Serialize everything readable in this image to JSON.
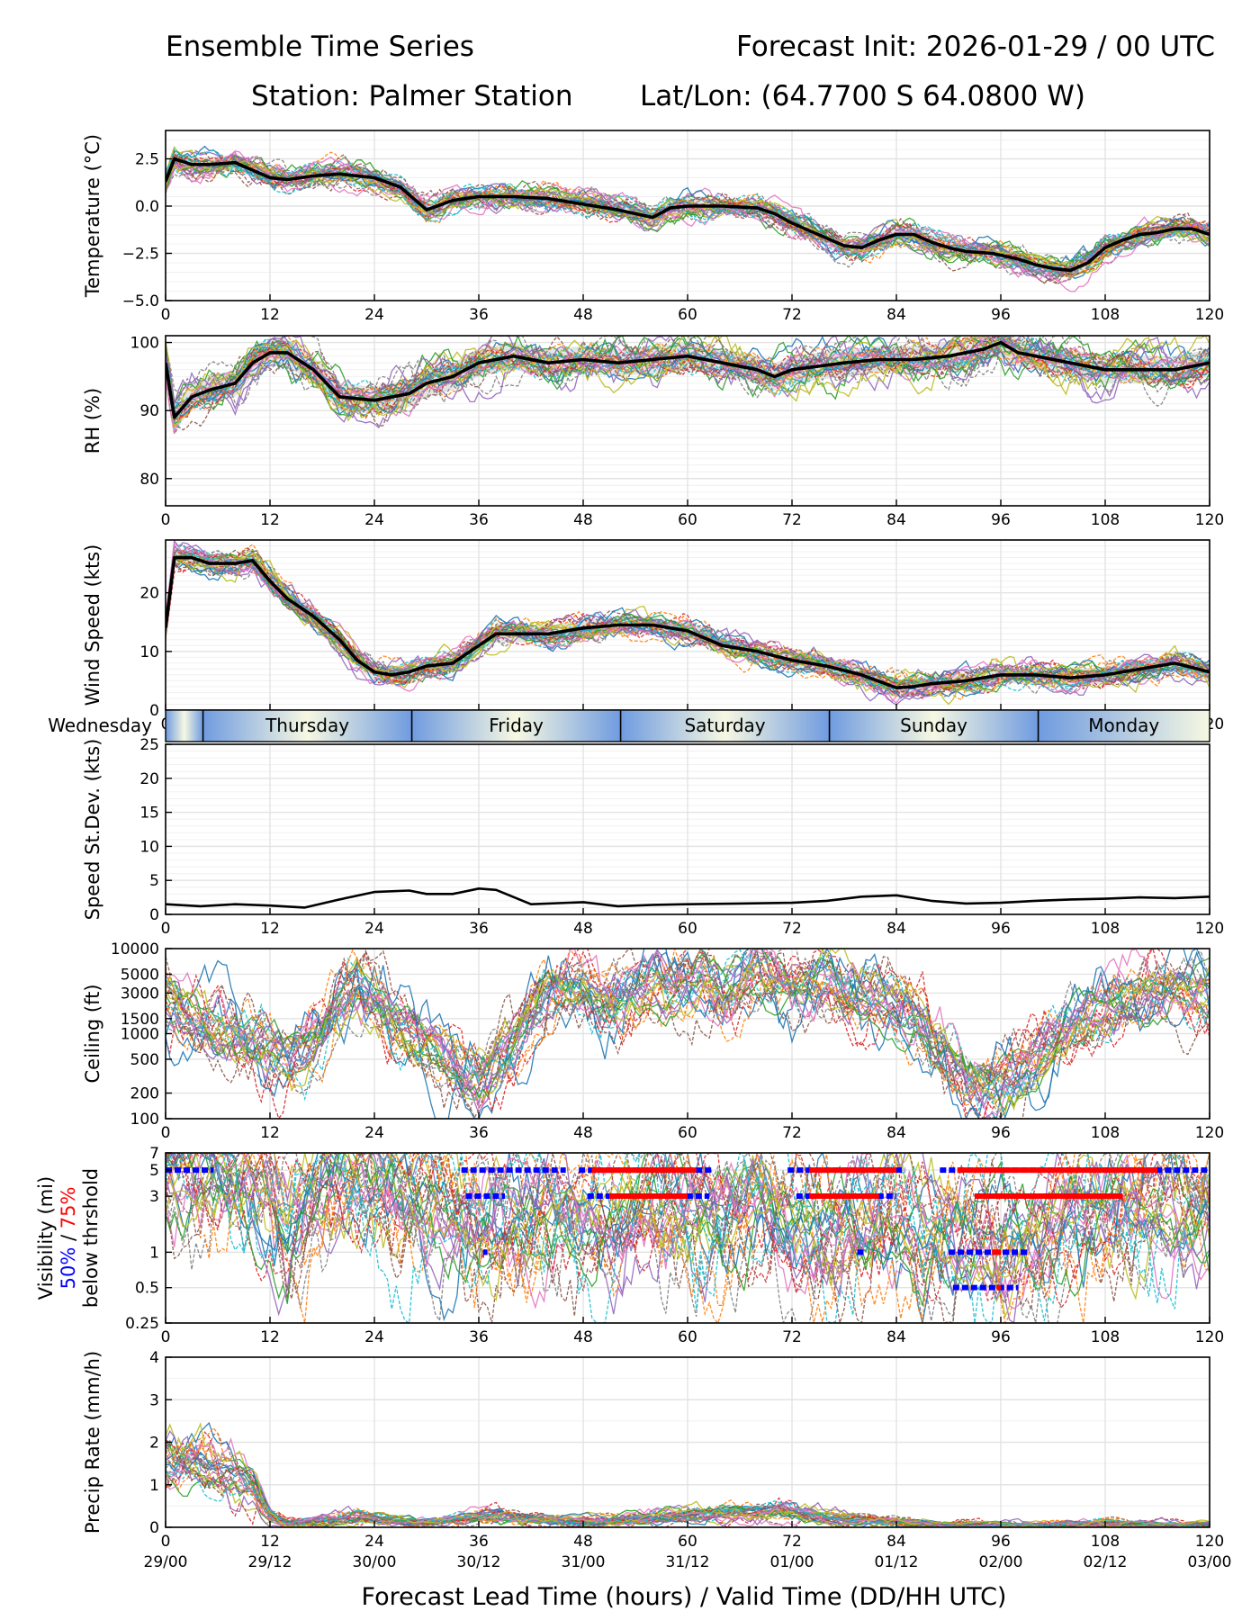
{
  "header": {
    "title": "Ensemble Time Series",
    "init": "Forecast Init: 2026-01-29 / 00 UTC",
    "station": "Station: Palmer Station",
    "latlon": "Lat/Lon: (64.7700 S 64.0800 W)"
  },
  "colors": {
    "members": [
      "#1f77b4",
      "#ff7f0e",
      "#2ca02c",
      "#d62728",
      "#9467bd",
      "#8c564b",
      "#e377c2",
      "#7f7f7f",
      "#bcbd22",
      "#17becf"
    ],
    "mean": "#000000",
    "spread": "#d3d3d3",
    "vis50": "#0000ff",
    "vis75": "#ff0000"
  },
  "chart_data": [
    {
      "id": "temperature",
      "type": "line",
      "ylabel": "Temperature (°C)",
      "ylim": [
        -5,
        4
      ],
      "yticks": [
        -5.0,
        -2.5,
        0.0,
        2.5
      ],
      "ytick_labels": [
        "−5.0",
        "−2.5",
        "0.0",
        "2.5"
      ],
      "xlim": [
        0,
        120
      ],
      "mean": {
        "x": [
          0,
          1,
          3,
          5,
          8,
          10,
          12,
          14,
          17,
          20,
          24,
          27,
          30,
          33,
          36,
          40,
          44,
          48,
          52,
          56,
          58,
          60,
          64,
          68,
          70,
          72,
          75,
          78,
          80,
          82,
          84,
          86,
          88,
          90,
          92,
          95,
          98,
          100,
          102,
          104,
          106,
          108,
          110,
          112,
          114,
          116,
          118,
          120
        ],
        "y": [
          1.3,
          2.5,
          2.2,
          2.2,
          2.3,
          1.9,
          1.5,
          1.4,
          1.6,
          1.7,
          1.5,
          1.0,
          -0.2,
          0.3,
          0.5,
          0.5,
          0.4,
          0.1,
          -0.2,
          -0.6,
          -0.1,
          0.0,
          0.0,
          -0.1,
          -0.4,
          -0.9,
          -1.5,
          -2.1,
          -2.2,
          -1.8,
          -1.5,
          -1.5,
          -1.9,
          -2.2,
          -2.4,
          -2.5,
          -2.8,
          -3.1,
          -3.3,
          -3.4,
          -3.0,
          -2.2,
          -1.8,
          -1.5,
          -1.4,
          -1.2,
          -1.2,
          -1.5
        ]
      },
      "spread_amp": 0.5
    },
    {
      "id": "rh",
      "type": "line",
      "ylabel": "RH (%)",
      "ylim": [
        76,
        101
      ],
      "yticks": [
        80,
        90,
        100
      ],
      "ytick_labels": [
        "80",
        "90",
        "100"
      ],
      "xlim": [
        0,
        120
      ],
      "mean": {
        "x": [
          0,
          1,
          3,
          5,
          8,
          10,
          12,
          14,
          17,
          20,
          24,
          28,
          30,
          33,
          36,
          40,
          44,
          48,
          52,
          56,
          60,
          64,
          68,
          70,
          72,
          75,
          78,
          82,
          86,
          90,
          94,
          96,
          98,
          100,
          104,
          108,
          112,
          116,
          120
        ],
        "y": [
          97,
          89,
          92,
          93,
          94,
          97,
          98.5,
          98.5,
          96,
          92,
          91.5,
          92.5,
          94,
          95,
          97,
          98,
          97,
          97.5,
          97,
          97.5,
          98,
          97,
          96,
          95,
          96,
          96.5,
          97,
          97.5,
          97.5,
          98,
          99,
          100,
          98.5,
          98,
          97,
          96,
          96,
          96,
          97
        ]
      },
      "spread_amp": 2.5
    },
    {
      "id": "wind",
      "type": "line",
      "ylabel": "Wind Speed (kts)",
      "ylim": [
        0,
        29
      ],
      "yticks": [
        0,
        10,
        20
      ],
      "ytick_labels": [
        "0",
        "10",
        "20"
      ],
      "xlim": [
        0,
        120
      ],
      "mean": {
        "x": [
          0,
          1,
          3,
          5,
          8,
          10,
          12,
          14,
          17,
          20,
          22,
          24,
          26,
          28,
          30,
          33,
          36,
          38,
          40,
          44,
          48,
          52,
          56,
          60,
          64,
          68,
          72,
          76,
          80,
          84,
          86,
          88,
          92,
          96,
          100,
          104,
          108,
          112,
          116,
          120
        ],
        "y": [
          14,
          26,
          26,
          25,
          25,
          25.5,
          22,
          19,
          16,
          12,
          8.5,
          6.5,
          6,
          6.5,
          7.5,
          8,
          11,
          13,
          13,
          13,
          14,
          14.5,
          14.5,
          13.5,
          11,
          10,
          8.5,
          7.5,
          6,
          3.8,
          4,
          4.5,
          5,
          6,
          6,
          5.5,
          6,
          7,
          8,
          6.5
        ]
      },
      "spread_amp": 1.8
    },
    {
      "id": "speed_sd",
      "type": "line",
      "ylabel": "Speed St.Dev. (kts)",
      "ylim": [
        0,
        25
      ],
      "yticks": [
        0,
        5,
        10,
        15,
        20,
        25
      ],
      "ytick_labels": [
        "0",
        "5",
        "10",
        "15",
        "20",
        "25"
      ],
      "xlim": [
        0,
        120
      ],
      "mean": {
        "x": [
          0,
          4,
          8,
          12,
          16,
          20,
          24,
          28,
          30,
          33,
          36,
          38,
          42,
          48,
          52,
          56,
          60,
          66,
          72,
          76,
          80,
          84,
          88,
          92,
          96,
          100,
          104,
          108,
          112,
          116,
          120
        ],
        "y": [
          1.5,
          1.2,
          1.5,
          1.3,
          1.0,
          2.2,
          3.3,
          3.5,
          3.0,
          3.0,
          3.8,
          3.6,
          1.5,
          1.8,
          1.2,
          1.4,
          1.5,
          1.6,
          1.7,
          2.0,
          2.6,
          2.8,
          2.0,
          1.6,
          1.7,
          2.0,
          2.2,
          2.3,
          2.5,
          2.4,
          2.6
        ]
      },
      "spread_amp": 0
    },
    {
      "id": "ceiling",
      "type": "line",
      "yscale": "log",
      "ylabel": "Ceiling (ft)",
      "ylim": [
        100,
        10000
      ],
      "yticks": [
        100,
        200,
        500,
        1000,
        1500,
        3000,
        5000,
        10000
      ],
      "ytick_labels": [
        "100",
        "200",
        "500",
        "1000",
        "1500",
        "3000",
        "5000",
        "10000"
      ],
      "xlim": [
        0,
        120
      ],
      "mean": {
        "x": [
          0,
          2,
          5,
          8,
          10,
          12,
          14,
          16,
          18,
          20,
          22,
          24,
          26,
          28,
          30,
          32,
          34,
          36,
          38,
          40,
          42,
          44,
          46,
          48,
          50,
          52,
          54,
          56,
          58,
          60,
          62,
          64,
          66,
          68,
          70,
          72,
          74,
          76,
          78,
          80,
          82,
          84,
          86,
          88,
          90,
          92,
          94,
          96,
          98,
          100,
          102,
          104,
          106,
          108,
          110,
          112,
          114,
          116,
          118,
          120
        ],
        "y": [
          2500,
          1800,
          1200,
          1000,
          800,
          700,
          500,
          500,
          800,
          2000,
          4000,
          3000,
          1500,
          1000,
          800,
          500,
          300,
          250,
          400,
          700,
          1500,
          2500,
          3000,
          3500,
          2500,
          3000,
          3500,
          4000,
          3000,
          4000,
          5000,
          3500,
          4000,
          5000,
          3500,
          3000,
          4000,
          5000,
          3500,
          3000,
          2500,
          2000,
          1500,
          800,
          500,
          300,
          250,
          250,
          300,
          500,
          800,
          1200,
          1500,
          2000,
          2500,
          3000,
          3500,
          4000,
          3500,
          3000
        ]
      },
      "spread_amp": 0.35
    },
    {
      "id": "visibility",
      "type": "line",
      "yscale": "log",
      "ylabel": "Visibility (mi)",
      "ylabel_50": "50%",
      "ylabel_sep": "/",
      "ylabel_75": "75%",
      "ylabel_sub": "below thrshold",
      "ylim": [
        0.25,
        7
      ],
      "yticks": [
        0.25,
        0.5,
        1,
        3,
        5,
        7
      ],
      "ytick_labels": [
        "0.25",
        "0.5",
        "1",
        "3",
        "5",
        "7"
      ],
      "xlim": [
        0,
        120
      ],
      "mean": {
        "x": [
          0,
          5,
          10,
          12,
          14,
          16,
          20,
          24,
          28,
          32,
          36,
          40,
          44,
          48,
          52,
          56,
          60,
          64,
          68,
          72,
          76,
          80,
          84,
          88,
          92,
          96,
          100,
          104,
          108,
          112,
          116,
          120
        ],
        "y": [
          4.5,
          4.5,
          4.0,
          2.5,
          1.5,
          2.5,
          4.0,
          3.5,
          3.0,
          2.0,
          1.5,
          2.0,
          2.5,
          2.0,
          2.0,
          2.5,
          2.5,
          2.0,
          2.5,
          2.0,
          1.5,
          1.5,
          2.0,
          1.5,
          1.2,
          1.0,
          1.5,
          2.0,
          2.0,
          2.5,
          2.0,
          2.0
        ]
      },
      "spread_amp": 0.5,
      "thresholds": [
        {
          "y": 5,
          "p50": [
            [
              0,
              5.5
            ],
            [
              34,
              46
            ],
            [
              47.5,
              63
            ],
            [
              71.5,
              85
            ],
            [
              89,
              120
            ]
          ],
          "p75": [
            [
              49,
              61
            ],
            [
              74,
              84
            ],
            [
              91,
              114
            ]
          ]
        },
        {
          "y": 3,
          "p50": [
            [
              34.5,
              39
            ],
            [
              48.5,
              62.5
            ],
            [
              72.5,
              84
            ]
          ],
          "p75": [
            [
              51,
              60
            ],
            [
              74,
              82
            ],
            [
              93,
              110
            ]
          ]
        },
        {
          "y": 1,
          "p50": [
            [
              36.5,
              37
            ],
            [
              79.5,
              80.5
            ],
            [
              90,
              99
            ]
          ],
          "p75": [
            [
              95,
              96
            ]
          ]
        },
        {
          "y": 0.5,
          "p50": [
            [
              90.5,
              98
            ]
          ],
          "p75": [
            [
              95.5,
              96
            ]
          ]
        }
      ]
    },
    {
      "id": "precip",
      "type": "line",
      "ylabel": "Precip Rate (mm/h)",
      "ylim": [
        0,
        4
      ],
      "yticks": [
        0,
        1,
        2,
        3,
        4
      ],
      "ytick_labels": [
        "0",
        "1",
        "2",
        "3",
        "4"
      ],
      "xlim": [
        0,
        120
      ],
      "mean": {
        "x": [
          0,
          2,
          4,
          6,
          8,
          10,
          12,
          14,
          18,
          22,
          26,
          30,
          34,
          38,
          42,
          46,
          50,
          54,
          58,
          62,
          66,
          70,
          74,
          78,
          82,
          86,
          90,
          96,
          102,
          108,
          114,
          120
        ],
        "y": [
          1.6,
          1.5,
          1.4,
          1.3,
          1.2,
          1.0,
          0.3,
          0.1,
          0.15,
          0.25,
          0.15,
          0.1,
          0.2,
          0.3,
          0.2,
          0.15,
          0.15,
          0.2,
          0.25,
          0.3,
          0.35,
          0.4,
          0.3,
          0.2,
          0.15,
          0.1,
          0.05,
          0.05,
          0.05,
          0.1,
          0.05,
          0.05
        ]
      },
      "spread_amp": 0.3
    }
  ],
  "x_axis": {
    "ticks": [
      0,
      12,
      24,
      36,
      48,
      60,
      72,
      84,
      96,
      108,
      120
    ],
    "tick_labels": [
      "0",
      "12",
      "24",
      "36",
      "48",
      "60",
      "72",
      "84",
      "96",
      "108",
      "120"
    ],
    "valid_labels": [
      "29/00",
      "29/12",
      "30/00",
      "30/12",
      "31/00",
      "31/12",
      "01/00",
      "01/12",
      "02/00",
      "02/12",
      "03/00"
    ],
    "xlabel": "Forecast Lead Time (hours) / Valid Time (DD/HH UTC)"
  },
  "day_strip": {
    "boundaries": [
      4.3,
      28.3,
      52.3,
      76.3,
      100.3
    ],
    "days": [
      {
        "label": "Wednesday"
      },
      {
        "label": "Thursday"
      },
      {
        "label": "Friday"
      },
      {
        "label": "Saturday"
      },
      {
        "label": "Sunday"
      },
      {
        "label": "Monday"
      }
    ]
  }
}
